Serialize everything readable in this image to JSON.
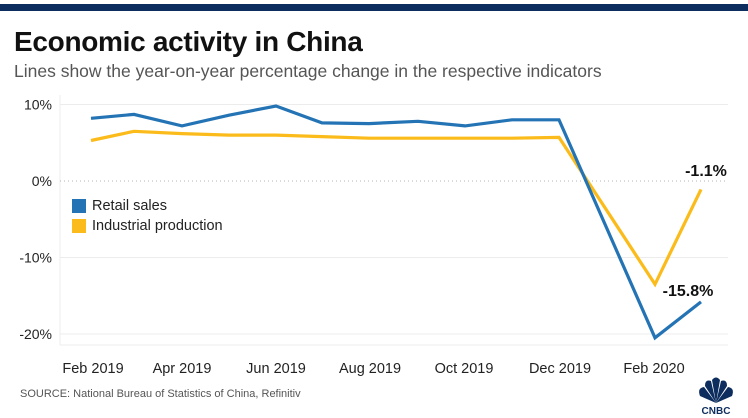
{
  "header": {
    "title": "Economic activity in China",
    "subtitle": "Lines show the year-on-year percentage change in the respective indicators"
  },
  "colors": {
    "top_bar": "#0c2d5e",
    "retail": "#2474b5",
    "industrial": "#fbbb1a"
  },
  "footer": {
    "source": "SOURCE: National Bureau of Statistics of China, Refinitiv",
    "logo": "CNBC"
  },
  "chart_data": {
    "type": "line",
    "title": "Economic activity in China",
    "subtitle": "Lines show the year-on-year percentage change in the respective indicators",
    "xlabel": "",
    "ylabel": "",
    "ylim": [
      -20,
      10
    ],
    "yticks": [
      10,
      0,
      -10,
      -20
    ],
    "ytick_labels": [
      "10%",
      "0%",
      "-10%",
      "-20%"
    ],
    "x": [
      "Feb 2019",
      "Mar 2019",
      "Apr 2019",
      "May 2019",
      "Jun 2019",
      "Jul 2019",
      "Aug 2019",
      "Sep 2019",
      "Oct 2019",
      "Nov 2019",
      "Dec 2019",
      "Feb 2020",
      "Mar 2020"
    ],
    "xtick_labels": [
      "Feb 2019",
      "Apr 2019",
      "Jun 2019",
      "Aug 2019",
      "Oct 2019",
      "Dec 2019",
      "Feb 2020"
    ],
    "grid": true,
    "legend": {
      "placement": "center-left",
      "entries": [
        "Retail sales",
        "Industrial production"
      ]
    },
    "series": [
      {
        "name": "Retail sales",
        "values": [
          8.2,
          8.7,
          7.2,
          8.6,
          9.8,
          7.6,
          7.5,
          7.8,
          7.2,
          8.0,
          8.0,
          -20.5,
          -15.8
        ]
      },
      {
        "name": "Industrial production",
        "values": [
          5.3,
          6.5,
          6.2,
          6.0,
          6.0,
          5.8,
          5.6,
          5.6,
          5.6,
          5.6,
          5.7,
          -13.5,
          -1.1
        ]
      }
    ],
    "annotations": [
      {
        "series": "Industrial production",
        "x": "Mar 2020",
        "text": "-1.1%"
      },
      {
        "series": "Retail sales",
        "x": "Mar 2020",
        "text": "-15.8%"
      }
    ]
  }
}
